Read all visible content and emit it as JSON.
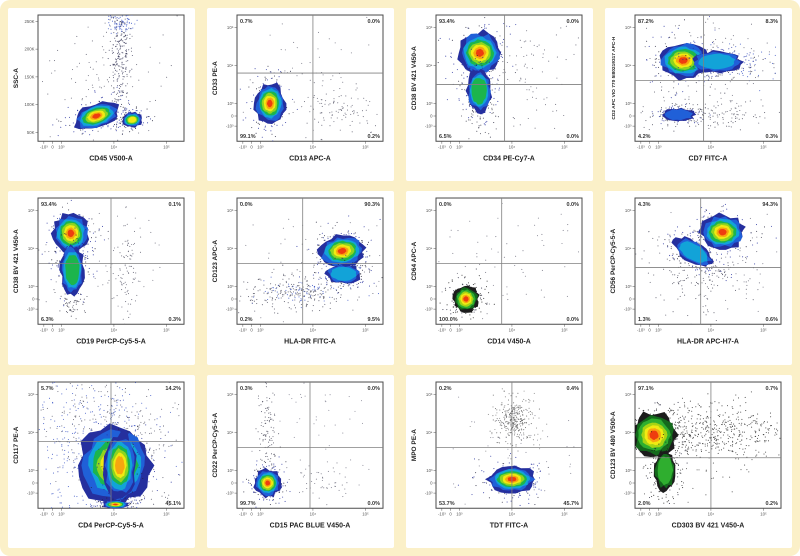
{
  "panel": {
    "background": "#FBF0C8",
    "card_background": "#FFFFFF",
    "plot_border_color": "#4B4B4B",
    "quadrant_line_color": "#808080",
    "axis_title_color": "#222222",
    "tick_label_color": "#555555",
    "percent_label_color": "#333333",
    "palettes": {
      "jet": [
        "#252F9E",
        "#2060D8",
        "#12A3D8",
        "#1CB54C",
        "#8FD41F",
        "#F1EA12",
        "#F7A60F",
        "#EE3D0F"
      ],
      "dark": [
        "#1C1C1C",
        "#14691C",
        "#2FAE2F",
        "#A6D414",
        "#F1EA12",
        "#F7A60F",
        "#EE3D0F"
      ]
    },
    "ticks": {
      "log_x": [
        {
          "t": "-10³",
          "p": 0.04
        },
        {
          "t": "0",
          "p": 0.1
        },
        {
          "t": "10³",
          "p": 0.16
        },
        {
          "t": "10⁴",
          "p": 0.52
        },
        {
          "t": "10⁵",
          "p": 0.88
        }
      ],
      "log_y": [
        {
          "t": "10⁵",
          "p": 0.1
        },
        {
          "t": "10⁴",
          "p": 0.4
        },
        {
          "t": "10³",
          "p": 0.7
        },
        {
          "t": "0",
          "p": 0.8
        },
        {
          "t": "-10³",
          "p": 0.88
        }
      ],
      "lin_y": [
        {
          "t": "250K",
          "p": 0.05
        },
        {
          "t": "200K",
          "p": 0.27
        },
        {
          "t": "150K",
          "p": 0.49
        },
        {
          "t": "100K",
          "p": 0.71
        },
        {
          "t": "50K",
          "p": 0.93
        }
      ]
    }
  },
  "chart_data": [
    {
      "type": "scatter",
      "xlabel": "CD45 V500-A",
      "ylabel": "SSC-A",
      "xticks": "log_x",
      "yticks": "lin_y",
      "quadrants": null,
      "blobs": [
        {
          "cx": 0.4,
          "cy": 0.8,
          "rx": 0.16,
          "ry": 0.1,
          "rot": -18,
          "palette": "jet",
          "core": 8
        },
        {
          "cx": 0.645,
          "cy": 0.83,
          "rx": 0.07,
          "ry": 0.06,
          "rot": -10,
          "palette": "jet",
          "core": 6
        }
      ],
      "scatters": [
        {
          "n": 240,
          "cx": 0.565,
          "cy": 0.28,
          "sx": 0.035,
          "sy": 0.26,
          "color": "#333355"
        },
        {
          "n": 70,
          "cx": 0.57,
          "cy": 0.06,
          "sx": 0.05,
          "sy": 0.04,
          "color": "#2B47C0"
        },
        {
          "n": 130,
          "cx": 0.48,
          "cy": 0.55,
          "sx": 0.25,
          "sy": 0.28,
          "color": "#555566"
        }
      ]
    },
    {
      "type": "scatter",
      "xlabel": "CD13 APC-A",
      "ylabel": "CD33 PE-A",
      "xticks": "log_x",
      "yticks": "log_y",
      "quadrants": {
        "x": 0.52,
        "y": 0.46,
        "tl": "0.7%",
        "tr": "0.0%",
        "bl": "99.1%",
        "br": "0.2%"
      },
      "blobs": [
        {
          "cx": 0.225,
          "cy": 0.7,
          "rx": 0.105,
          "ry": 0.16,
          "rot": 0,
          "palette": "jet",
          "core": 8
        }
      ],
      "scatters": [
        {
          "n": 100,
          "cx": 0.7,
          "cy": 0.73,
          "sx": 0.14,
          "sy": 0.1,
          "color": "#555566"
        },
        {
          "n": 50,
          "cx": 0.5,
          "cy": 0.45,
          "sx": 0.28,
          "sy": 0.25,
          "color": "#666677"
        }
      ]
    },
    {
      "type": "scatter",
      "xlabel": "CD34 PE-Cy7-A",
      "ylabel": "CD38 BV 421 V450-A",
      "xticks": "log_x",
      "yticks": "log_y",
      "quadrants": {
        "x": 0.47,
        "y": 0.55,
        "tl": "93.4%",
        "tr": "0.0%",
        "bl": "6.5%",
        "br": "0.0%"
      },
      "blobs": [
        {
          "cx": 0.3,
          "cy": 0.3,
          "rx": 0.15,
          "ry": 0.17,
          "rot": 0,
          "palette": "jet",
          "core": 8
        },
        {
          "cx": 0.295,
          "cy": 0.6,
          "rx": 0.085,
          "ry": 0.17,
          "rot": 0,
          "palette": "jet",
          "core": 4
        }
      ],
      "scatters": [
        {
          "n": 90,
          "cx": 0.6,
          "cy": 0.45,
          "sx": 0.18,
          "sy": 0.28,
          "color": "#555566"
        },
        {
          "n": 60,
          "cx": 0.3,
          "cy": 0.75,
          "sx": 0.06,
          "sy": 0.1,
          "color": "#333344"
        }
      ]
    },
    {
      "type": "scatter",
      "xlabel": "CD7 FITC-A",
      "ylabel": "CD2 APC VIO 770 5I80219317 APC-H",
      "xticks": "log_x",
      "yticks": "log_y",
      "quadrants": {
        "x": 0.47,
        "y": 0.52,
        "tl": "87.2%",
        "tr": "8.3%",
        "bl": "4.2%",
        "br": "0.3%"
      },
      "blobs": [
        {
          "cx": 0.33,
          "cy": 0.36,
          "rx": 0.17,
          "ry": 0.145,
          "rot": 0,
          "palette": "jet",
          "core": 8
        },
        {
          "cx": 0.56,
          "cy": 0.37,
          "rx": 0.17,
          "ry": 0.085,
          "rot": 0,
          "palette": "jet",
          "core": 3
        },
        {
          "cx": 0.3,
          "cy": 0.79,
          "rx": 0.11,
          "ry": 0.05,
          "rot": 0,
          "palette": "jet",
          "core": 2
        }
      ],
      "scatters": [
        {
          "n": 160,
          "cx": 0.48,
          "cy": 0.79,
          "sx": 0.22,
          "sy": 0.06,
          "color": "#444455"
        },
        {
          "n": 150,
          "cx": 0.55,
          "cy": 0.4,
          "sx": 0.25,
          "sy": 0.2,
          "color": "#555566"
        },
        {
          "n": 60,
          "cx": 0.75,
          "cy": 0.38,
          "sx": 0.12,
          "sy": 0.06,
          "color": "#2B47C0"
        }
      ]
    },
    {
      "type": "scatter",
      "xlabel": "CD19 PerCP-Cy5-5-A",
      "ylabel": "CD38 BV 421 V450-A",
      "xticks": "log_x",
      "yticks": "log_y",
      "quadrants": {
        "x": 0.5,
        "y": 0.52,
        "tl": "93.4%",
        "tr": "0.1%",
        "bl": "6.3%",
        "br": "0.3%"
      },
      "blobs": [
        {
          "cx": 0.225,
          "cy": 0.28,
          "rx": 0.125,
          "ry": 0.16,
          "rot": 0,
          "palette": "jet",
          "core": 8
        },
        {
          "cx": 0.235,
          "cy": 0.57,
          "rx": 0.08,
          "ry": 0.2,
          "rot": 0,
          "palette": "jet",
          "core": 4
        }
      ],
      "scatters": [
        {
          "n": 80,
          "cx": 0.6,
          "cy": 0.6,
          "sx": 0.045,
          "sy": 0.17,
          "color": "#555566"
        },
        {
          "n": 70,
          "cx": 0.4,
          "cy": 0.5,
          "sx": 0.25,
          "sy": 0.3,
          "color": "#666677"
        },
        {
          "n": 50,
          "cx": 0.23,
          "cy": 0.82,
          "sx": 0.05,
          "sy": 0.06,
          "color": "#333344"
        }
      ]
    },
    {
      "type": "scatter",
      "xlabel": "HLA-DR FITC-A",
      "ylabel": "CD123 APC-A",
      "xticks": "log_x",
      "yticks": "log_y",
      "quadrants": {
        "x": 0.45,
        "y": 0.52,
        "tl": "0.0%",
        "tr": "90.3%",
        "bl": "0.2%",
        "br": "9.5%"
      },
      "blobs": [
        {
          "cx": 0.72,
          "cy": 0.42,
          "rx": 0.16,
          "ry": 0.125,
          "rot": -8,
          "palette": "jet",
          "core": 8
        },
        {
          "cx": 0.73,
          "cy": 0.6,
          "rx": 0.12,
          "ry": 0.075,
          "rot": 0,
          "palette": "jet",
          "core": 3
        }
      ],
      "scatters": [
        {
          "n": 230,
          "cx": 0.38,
          "cy": 0.745,
          "sx": 0.21,
          "sy": 0.065,
          "color": "#444455"
        },
        {
          "n": 70,
          "cx": 0.45,
          "cy": 0.74,
          "sx": 0.18,
          "sy": 0.05,
          "color": "#2B47C0"
        },
        {
          "n": 60,
          "cx": 0.5,
          "cy": 0.5,
          "sx": 0.3,
          "sy": 0.25,
          "color": "#666677"
        }
      ]
    },
    {
      "type": "scatter",
      "xlabel": "CD14 V450-A",
      "ylabel": "CD64 APC-A",
      "xticks": "log_x",
      "yticks": "log_y",
      "quadrants": {
        "x": 0.45,
        "y": 0.52,
        "tl": "0.0%",
        "tr": "0.0%",
        "bl": "100.0%",
        "br": "0.0%"
      },
      "blobs": [
        {
          "cx": 0.205,
          "cy": 0.8,
          "rx": 0.09,
          "ry": 0.105,
          "rot": 0,
          "palette": "dark",
          "core": 7
        }
      ],
      "scatters": [
        {
          "n": 70,
          "cx": 0.5,
          "cy": 0.45,
          "sx": 0.28,
          "sy": 0.28,
          "color": "#666677"
        }
      ]
    },
    {
      "type": "scatter",
      "xlabel": "HLA-DR APC-H7-A",
      "ylabel": "CD56 PerCP-Cy5-5-A",
      "xticks": "log_x",
      "yticks": "log_y",
      "quadrants": {
        "x": 0.45,
        "y": 0.55,
        "tl": "4.3%",
        "tr": "94.3%",
        "bl": "1.3%",
        "br": "0.6%"
      },
      "blobs": [
        {
          "cx": 0.6,
          "cy": 0.27,
          "rx": 0.15,
          "ry": 0.14,
          "rot": 0,
          "palette": "jet",
          "core": 8
        },
        {
          "cx": 0.4,
          "cy": 0.43,
          "rx": 0.15,
          "ry": 0.085,
          "rot": 32,
          "palette": "jet",
          "core": 3
        }
      ],
      "scatters": [
        {
          "n": 170,
          "cx": 0.45,
          "cy": 0.57,
          "sx": 0.2,
          "sy": 0.16,
          "color": "#444455"
        },
        {
          "n": 70,
          "cx": 0.6,
          "cy": 0.5,
          "sx": 0.2,
          "sy": 0.2,
          "color": "#666677"
        }
      ]
    },
    {
      "type": "scatter",
      "xlabel": "CD4 PerCP-Cy5-5-A",
      "ylabel": "CD117 PE-A",
      "xticks": "log_x",
      "yticks": "log_y",
      "quadrants": {
        "x": 0.5,
        "y": 0.47,
        "tl": "5.7%",
        "tr": "14.2%",
        "bl": "",
        "br": "45.1%"
      },
      "blobs": [
        {
          "cx": 0.53,
          "cy": 0.66,
          "rx": 0.25,
          "ry": 0.31,
          "rot": 0,
          "palette": "jet",
          "core": 6
        },
        {
          "cx": 0.56,
          "cy": 0.66,
          "rx": 0.115,
          "ry": 0.26,
          "rot": 0,
          "palette": "jet",
          "core": 7
        },
        {
          "cx": 0.53,
          "cy": 0.97,
          "rx": 0.09,
          "ry": 0.035,
          "rot": 0,
          "palette": "jet",
          "core": 8
        }
      ],
      "scatters": [
        {
          "n": 320,
          "cx": 0.36,
          "cy": 0.45,
          "sx": 0.23,
          "sy": 0.26,
          "color": "#2B47C0"
        },
        {
          "n": 220,
          "cx": 0.45,
          "cy": 0.3,
          "sx": 0.3,
          "sy": 0.22,
          "color": "#555566"
        },
        {
          "n": 80,
          "cx": 0.75,
          "cy": 0.6,
          "sx": 0.12,
          "sy": 0.2,
          "color": "#555566"
        }
      ]
    },
    {
      "type": "scatter",
      "xlabel": "CD15 PAC BLUE V450-A",
      "ylabel": "CD22 PerCP-Cy5-5-A",
      "xticks": "log_x",
      "yticks": "log_y",
      "quadrants": {
        "x": 0.5,
        "y": 0.52,
        "tl": "0.3%",
        "tr": "0.0%",
        "bl": "99.7%",
        "br": "0.0%"
      },
      "blobs": [
        {
          "cx": 0.21,
          "cy": 0.8,
          "rx": 0.09,
          "ry": 0.11,
          "rot": 0,
          "palette": "jet",
          "core": 8
        }
      ],
      "scatters": [
        {
          "n": 120,
          "cx": 0.21,
          "cy": 0.45,
          "sx": 0.035,
          "sy": 0.22,
          "color": "#444455"
        },
        {
          "n": 55,
          "cx": 0.62,
          "cy": 0.78,
          "sx": 0.14,
          "sy": 0.09,
          "color": "#666677"
        },
        {
          "n": 40,
          "cx": 0.5,
          "cy": 0.3,
          "sx": 0.25,
          "sy": 0.2,
          "color": "#777788"
        }
      ]
    },
    {
      "type": "scatter",
      "xlabel": "TDT FITC-A",
      "ylabel": "MPO PE-A",
      "xticks": "log_x",
      "yticks": "log_y",
      "quadrants": {
        "x": 0.52,
        "y": 0.52,
        "tl": "0.2%",
        "tr": "0.4%",
        "bl": "53.7%",
        "br": "45.7%"
      },
      "blobs": [
        {
          "cx": 0.52,
          "cy": 0.77,
          "rx": 0.165,
          "ry": 0.105,
          "rot": 0,
          "palette": "jet",
          "core": 8
        }
      ],
      "scatters": [
        {
          "n": 230,
          "cx": 0.53,
          "cy": 0.3,
          "sx": 0.05,
          "sy": 0.08,
          "color": "#555555"
        },
        {
          "n": 80,
          "cx": 0.53,
          "cy": 0.32,
          "sx": 0.1,
          "sy": 0.13,
          "color": "#777777"
        },
        {
          "n": 60,
          "cx": 0.5,
          "cy": 0.6,
          "sx": 0.3,
          "sy": 0.25,
          "color": "#777788"
        }
      ]
    },
    {
      "type": "scatter",
      "xlabel": "CD303 BV 421 V450-A",
      "ylabel": "CD123 BV 480 V500-A",
      "xticks": "log_x",
      "yticks": "log_y",
      "quadrants": {
        "x": 0.52,
        "y": 0.6,
        "tl": "97.1%",
        "tr": "0.7%",
        "bl": "2.0%",
        "br": "0.2%"
      },
      "blobs": [
        {
          "cx": 0.13,
          "cy": 0.42,
          "rx": 0.155,
          "ry": 0.18,
          "rot": 0,
          "palette": "dark",
          "core": 7
        },
        {
          "cx": 0.205,
          "cy": 0.7,
          "rx": 0.075,
          "ry": 0.16,
          "rot": 0,
          "palette": "dark",
          "core": 3
        }
      ],
      "scatters": [
        {
          "n": 360,
          "cx": 0.45,
          "cy": 0.4,
          "sx": 0.26,
          "sy": 0.12,
          "color": "#222222"
        },
        {
          "n": 140,
          "cx": 0.72,
          "cy": 0.36,
          "sx": 0.16,
          "sy": 0.09,
          "color": "#222222"
        },
        {
          "n": 80,
          "cx": 0.3,
          "cy": 0.6,
          "sx": 0.2,
          "sy": 0.2,
          "color": "#333333"
        }
      ]
    }
  ]
}
